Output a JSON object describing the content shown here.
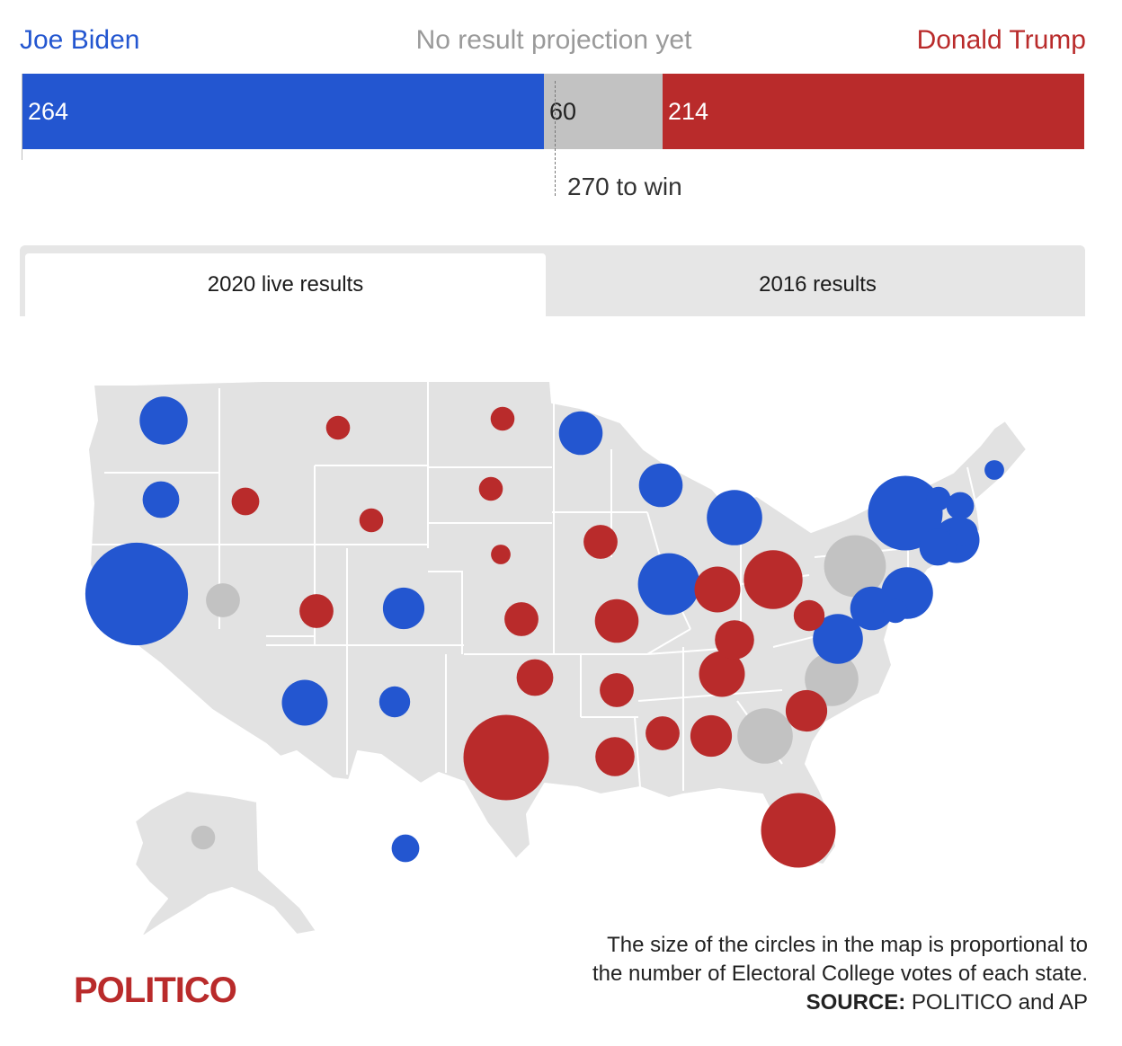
{
  "header": {
    "biden_label": "Joe Biden",
    "no_result_label": "No result projection yet",
    "trump_label": "Donald Trump"
  },
  "bar": {
    "biden_votes": 264,
    "no_result_votes": 60,
    "trump_votes": 214,
    "total_votes": 538,
    "win_threshold": 270,
    "win_label": "270 to win"
  },
  "tabs": {
    "live_label": "2020 live results",
    "previous_label": "2016 results",
    "active": "live"
  },
  "colors": {
    "biden": "#2356d0",
    "trump": "#b92b2b",
    "no_result": "#c2c2c2",
    "land": "#e2e2e2",
    "border": "#ffffff"
  },
  "map": {
    "states": [
      {
        "state": "WA",
        "ev": 12,
        "result": "biden"
      },
      {
        "state": "OR",
        "ev": 7,
        "result": "biden"
      },
      {
        "state": "CA",
        "ev": 55,
        "result": "biden"
      },
      {
        "state": "NV",
        "ev": 6,
        "result": "none"
      },
      {
        "state": "ID",
        "ev": 4,
        "result": "trump"
      },
      {
        "state": "MT",
        "ev": 3,
        "result": "trump"
      },
      {
        "state": "WY",
        "ev": 3,
        "result": "trump"
      },
      {
        "state": "UT",
        "ev": 6,
        "result": "trump"
      },
      {
        "state": "CO",
        "ev": 9,
        "result": "biden"
      },
      {
        "state": "AZ",
        "ev": 11,
        "result": "biden"
      },
      {
        "state": "NM",
        "ev": 5,
        "result": "biden"
      },
      {
        "state": "ND",
        "ev": 3,
        "result": "trump"
      },
      {
        "state": "SD",
        "ev": 3,
        "result": "trump"
      },
      {
        "state": "NE",
        "ev": 2,
        "result": "trump"
      },
      {
        "state": "KS",
        "ev": 6,
        "result": "trump"
      },
      {
        "state": "OK",
        "ev": 7,
        "result": "trump"
      },
      {
        "state": "TX",
        "ev": 38,
        "result": "trump"
      },
      {
        "state": "MN",
        "ev": 10,
        "result": "biden"
      },
      {
        "state": "IA",
        "ev": 6,
        "result": "trump"
      },
      {
        "state": "MO",
        "ev": 10,
        "result": "trump"
      },
      {
        "state": "AR",
        "ev": 6,
        "result": "trump"
      },
      {
        "state": "LA",
        "ev": 8,
        "result": "trump"
      },
      {
        "state": "WI",
        "ev": 10,
        "result": "biden"
      },
      {
        "state": "IL",
        "ev": 20,
        "result": "biden"
      },
      {
        "state": "MI",
        "ev": 16,
        "result": "biden"
      },
      {
        "state": "IN",
        "ev": 11,
        "result": "trump"
      },
      {
        "state": "OH",
        "ev": 18,
        "result": "trump"
      },
      {
        "state": "KY",
        "ev": 8,
        "result": "trump"
      },
      {
        "state": "TN",
        "ev": 11,
        "result": "trump"
      },
      {
        "state": "MS",
        "ev": 6,
        "result": "trump"
      },
      {
        "state": "AL",
        "ev": 9,
        "result": "trump"
      },
      {
        "state": "GA",
        "ev": 16,
        "result": "none"
      },
      {
        "state": "FL",
        "ev": 29,
        "result": "trump"
      },
      {
        "state": "SC",
        "ev": 9,
        "result": "trump"
      },
      {
        "state": "NC",
        "ev": 15,
        "result": "none"
      },
      {
        "state": "VA",
        "ev": 13,
        "result": "biden"
      },
      {
        "state": "WV",
        "ev": 5,
        "result": "trump"
      },
      {
        "state": "PA",
        "ev": 20,
        "result": "none"
      },
      {
        "state": "NY",
        "ev": 29,
        "result": "biden"
      },
      {
        "state": "NJ",
        "ev": 14,
        "result": "biden"
      },
      {
        "state": "MD",
        "ev": 10,
        "result": "biden"
      },
      {
        "state": "DE",
        "ev": 3,
        "result": "biden"
      },
      {
        "state": "CT",
        "ev": 7,
        "result": "biden"
      },
      {
        "state": "MA",
        "ev": 11,
        "result": "biden"
      },
      {
        "state": "VT",
        "ev": 3,
        "result": "biden"
      },
      {
        "state": "NH",
        "ev": 4,
        "result": "biden"
      },
      {
        "state": "RI",
        "ev": 4,
        "result": "biden"
      },
      {
        "state": "ME",
        "ev": 2,
        "result": "biden"
      },
      {
        "state": "AK",
        "ev": 3,
        "result": "none"
      },
      {
        "state": "HI",
        "ev": 4,
        "result": "biden"
      }
    ]
  },
  "footer": {
    "logo_text": "POLITICO",
    "note_line1": "The size of the circles in the map is proportional to",
    "note_line2": "the number of Electoral College votes of each state.",
    "source_label": "SOURCE:",
    "source_text": "POLITICO and AP"
  }
}
